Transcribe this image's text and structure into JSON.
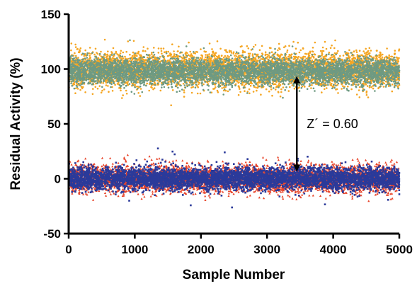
{
  "chart_data": {
    "type": "scatter",
    "title": "",
    "xlabel": "Sample Number",
    "ylabel": "Residual Activity (%)",
    "xlim": [
      0,
      5000
    ],
    "ylim": [
      -50,
      150
    ],
    "x_ticks": [
      0,
      1000,
      2000,
      3000,
      4000,
      5000
    ],
    "y_ticks": [
      -50,
      0,
      50,
      100,
      150
    ],
    "x_tick_labels": [
      "0",
      "1000",
      "2000",
      "3000",
      "4000",
      "5000"
    ],
    "y_tick_labels": [
      "-50",
      "0",
      "50",
      "100",
      "150"
    ],
    "grid": false,
    "legend": "none",
    "series": [
      {
        "color": "#f5a623",
        "marker": "circle",
        "n": 5000,
        "x_range": [
          0,
          5000
        ],
        "mean": 100,
        "sd": 8
      },
      {
        "color": "#6e9a82",
        "marker": "circle",
        "n": 5000,
        "x_range": [
          0,
          5000
        ],
        "mean": 98,
        "sd": 6
      },
      {
        "color": "#e8452a",
        "marker": "triangle",
        "n": 5000,
        "x_range": [
          0,
          5000
        ],
        "mean": 0,
        "sd": 6
      },
      {
        "color": "#2b3a9a",
        "marker": "square",
        "n": 5000,
        "x_range": [
          0,
          5000
        ],
        "mean": 0,
        "sd": 5
      }
    ],
    "annotations": [
      {
        "text": "Z´ = 0.60",
        "x": 3450,
        "y_from": 100,
        "y_to": 0,
        "arrow": "double"
      }
    ]
  }
}
